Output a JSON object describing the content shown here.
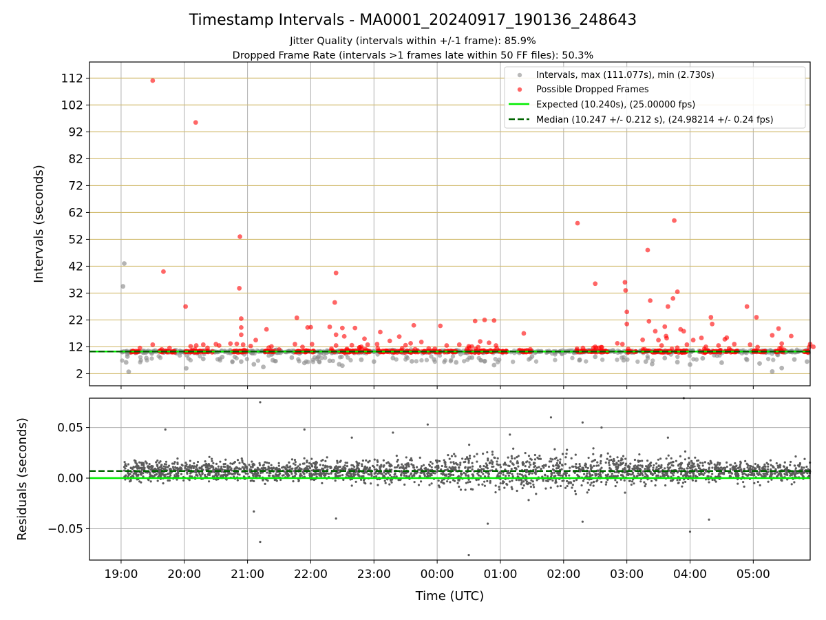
{
  "figure": {
    "title": "Timestamp Intervals - MA0001_20240917_190136_248643",
    "subtitle_1": "Jitter Quality (intervals within +/-1 frame): 85.9%",
    "subtitle_2": "Dropped Frame Rate (intervals >1 frames late within 50 FF files): 50.3%"
  },
  "colors": {
    "intervals": "#8c8c8c",
    "dropped": "#ff0000",
    "expected": "#00ee00",
    "median": "#006400",
    "residual_points": "#5a5a5a",
    "hgrid_top": "#d2bc70",
    "grid": "#b0b0b0"
  },
  "chart_data": [
    {
      "type": "scatter",
      "xlabel": "",
      "ylabel": "Intervals (seconds)",
      "ylim": [
        -2.5,
        118
      ],
      "xlim": [
        18.5,
        29.9
      ],
      "x_axis_type": "time (hours UTC, continuing past midnight)",
      "yticks": [
        2,
        12,
        22,
        32,
        42,
        52,
        62,
        72,
        82,
        92,
        102,
        112
      ],
      "ytick_labels": [
        "2",
        "12",
        "22",
        "32",
        "42",
        "52",
        "62",
        "72",
        "82",
        "92",
        "102",
        "112"
      ],
      "grid": "on",
      "legend_position": "top-right",
      "legend": [
        "Intervals, max (111.077s), min (2.730s)",
        "Possible Dropped Frames",
        "Expected (10.240s), (25.00000 fps)",
        "Median (10.247 +/- 0.212 s), (24.98214 +/- 0.24 fps)"
      ],
      "expected_value": 10.24,
      "median_value": 10.247,
      "series": [
        {
          "name": "Intervals, max (111.077s), min (2.730s)",
          "points": [
            [
              19.05,
              43.0
            ],
            [
              19.03,
              34.5
            ],
            [
              19.12,
              2.73
            ],
            [
              19.08,
              6.2
            ],
            [
              19.1,
              8.4
            ],
            [
              19.4,
              7.8
            ],
            [
              20.03,
              4.0
            ],
            [
              20.3,
              7.5
            ],
            [
              20.6,
              8.2
            ],
            [
              20.9,
              6.5
            ],
            [
              21.1,
              5.5
            ],
            [
              21.25,
              4.5
            ],
            [
              21.4,
              7.0
            ],
            [
              21.7,
              8.0
            ],
            [
              21.9,
              6.0
            ],
            [
              22.1,
              7.5
            ],
            [
              22.3,
              6.8
            ],
            [
              22.45,
              5.5
            ],
            [
              22.5,
              5.0
            ],
            [
              22.8,
              7.2
            ],
            [
              23.0,
              6.5
            ],
            [
              23.3,
              7.8
            ],
            [
              23.6,
              6.6
            ],
            [
              23.95,
              7.3
            ],
            [
              24.3,
              6.2
            ],
            [
              24.55,
              8.0
            ],
            [
              24.75,
              6.6
            ],
            [
              24.9,
              5.2
            ],
            [
              25.5,
              8.4
            ],
            [
              26.25,
              7.0
            ],
            [
              26.5,
              8.3
            ],
            [
              26.95,
              7.0
            ],
            [
              27.3,
              6.5
            ],
            [
              27.4,
              5.6
            ],
            [
              27.6,
              7.8
            ],
            [
              27.8,
              6.3
            ],
            [
              28.0,
              5.4
            ],
            [
              28.2,
              7.7
            ],
            [
              28.5,
              6.1
            ],
            [
              28.9,
              7.2
            ],
            [
              29.1,
              5.8
            ],
            [
              29.3,
              2.8
            ],
            [
              29.45,
              4.1
            ],
            [
              29.65,
              7.3
            ],
            [
              29.85,
              6.5
            ]
          ]
        },
        {
          "name": "Possible Dropped Frames",
          "points": [
            [
              19.5,
              111.077
            ],
            [
              20.18,
              95.5
            ],
            [
              19.67,
              40.0
            ],
            [
              20.02,
              27.0
            ],
            [
              19.5,
              12.8
            ],
            [
              20.1,
              12.2
            ],
            [
              20.3,
              12.8
            ],
            [
              20.5,
              13.0
            ],
            [
              20.55,
              12.5
            ],
            [
              20.73,
              13.2
            ],
            [
              20.83,
              13.1
            ],
            [
              20.88,
              53.0
            ],
            [
              20.87,
              33.8
            ],
            [
              20.9,
              22.5
            ],
            [
              20.9,
              19.2
            ],
            [
              20.9,
              16.5
            ],
            [
              20.93,
              12.8
            ],
            [
              21.05,
              12.3
            ],
            [
              21.13,
              14.5
            ],
            [
              21.3,
              18.5
            ],
            [
              21.5,
              11.0
            ],
            [
              21.75,
              13.0
            ],
            [
              21.78,
              22.8
            ],
            [
              21.95,
              19.2
            ],
            [
              22.0,
              19.3
            ],
            [
              22.02,
              13.0
            ],
            [
              22.3,
              19.4
            ],
            [
              22.4,
              39.5
            ],
            [
              22.38,
              28.5
            ],
            [
              22.4,
              16.5
            ],
            [
              22.4,
              12.5
            ],
            [
              22.5,
              19.0
            ],
            [
              22.53,
              15.9
            ],
            [
              22.65,
              12.6
            ],
            [
              22.7,
              19.0
            ],
            [
              22.8,
              12.0
            ],
            [
              22.85,
              15.0
            ],
            [
              22.9,
              12.8
            ],
            [
              23.1,
              17.5
            ],
            [
              23.05,
              13.0
            ],
            [
              23.25,
              14.2
            ],
            [
              23.4,
              15.8
            ],
            [
              23.5,
              12.6
            ],
            [
              23.58,
              13.3
            ],
            [
              23.63,
              20.0
            ],
            [
              23.75,
              13.8
            ],
            [
              24.05,
              19.8
            ],
            [
              24.15,
              12.5
            ],
            [
              24.35,
              12.8
            ],
            [
              24.5,
              12.2
            ],
            [
              24.6,
              21.6
            ],
            [
              24.68,
              14.0
            ],
            [
              24.75,
              22.0
            ],
            [
              24.82,
              13.5
            ],
            [
              24.9,
              21.8
            ],
            [
              24.93,
              12.5
            ],
            [
              25.37,
              17.0
            ],
            [
              26.22,
              58.0
            ],
            [
              26.5,
              35.5
            ],
            [
              26.85,
              13.3
            ],
            [
              26.93,
              13.0
            ],
            [
              26.97,
              36.0
            ],
            [
              26.98,
              33.0
            ],
            [
              27.0,
              20.5
            ],
            [
              27.0,
              25.0
            ],
            [
              27.25,
              14.6
            ],
            [
              27.33,
              48.0
            ],
            [
              27.37,
              29.2
            ],
            [
              27.35,
              21.5
            ],
            [
              27.45,
              17.8
            ],
            [
              27.5,
              14.5
            ],
            [
              27.55,
              12.5
            ],
            [
              27.6,
              19.5
            ],
            [
              27.65,
              27.0
            ],
            [
              27.62,
              16.0
            ],
            [
              27.63,
              15.2
            ],
            [
              27.75,
              59.0
            ],
            [
              27.73,
              30.0
            ],
            [
              27.8,
              32.5
            ],
            [
              27.85,
              18.5
            ],
            [
              27.9,
              17.8
            ],
            [
              27.95,
              12.8
            ],
            [
              28.05,
              14.5
            ],
            [
              28.18,
              15.3
            ],
            [
              28.25,
              12.0
            ],
            [
              28.33,
              23.0
            ],
            [
              28.35,
              20.5
            ],
            [
              28.45,
              12.5
            ],
            [
              28.55,
              14.8
            ],
            [
              28.58,
              15.4
            ],
            [
              28.7,
              13.0
            ],
            [
              28.9,
              27.0
            ],
            [
              28.95,
              12.8
            ],
            [
              29.05,
              23.0
            ],
            [
              29.3,
              16.3
            ],
            [
              29.4,
              18.8
            ],
            [
              29.45,
              13.2
            ],
            [
              29.6,
              16.0
            ],
            [
              29.9,
              13.0
            ],
            [
              29.95,
              12.0
            ]
          ]
        }
      ]
    },
    {
      "type": "scatter",
      "xlabel": "Time (UTC)",
      "ylabel": "Residuals (seconds)",
      "ylim": [
        -0.081,
        0.079
      ],
      "xlim": [
        18.5,
        29.9
      ],
      "xticks": [
        19,
        20,
        21,
        22,
        23,
        24,
        25,
        26,
        27,
        28,
        29
      ],
      "xtick_labels": [
        "19:00",
        "20:00",
        "21:00",
        "22:00",
        "23:00",
        "00:00",
        "01:00",
        "02:00",
        "03:00",
        "04:00",
        "05:00"
      ],
      "yticks": [
        0.05,
        0.0,
        -0.05
      ],
      "ytick_labels": [
        "0.05",
        "0.00",
        "−0.05"
      ],
      "grid": "on",
      "expected_value": 0.0,
      "median_value": 0.007,
      "series": [
        {
          "name": "",
          "points": [
            [
              21.2,
              0.075
            ],
            [
              21.2,
              -0.063
            ],
            [
              21.1,
              -0.033
            ],
            [
              22.4,
              -0.04
            ],
            [
              22.65,
              0.04
            ],
            [
              23.3,
              0.045
            ],
            [
              24.8,
              -0.045
            ],
            [
              25.8,
              0.06
            ],
            [
              26.3,
              0.055
            ],
            [
              26.3,
              -0.043
            ],
            [
              24.5,
              -0.076
            ],
            [
              27.9,
              0.079
            ],
            [
              28.0,
              -0.053
            ],
            [
              19.7,
              0.048
            ],
            [
              21.9,
              0.048
            ],
            [
              23.85,
              0.053
            ],
            [
              25.15,
              0.043
            ],
            [
              26.6,
              0.05
            ],
            [
              27.65,
              0.04
            ],
            [
              28.3,
              -0.041
            ]
          ],
          "note_generated": false
        }
      ]
    }
  ]
}
